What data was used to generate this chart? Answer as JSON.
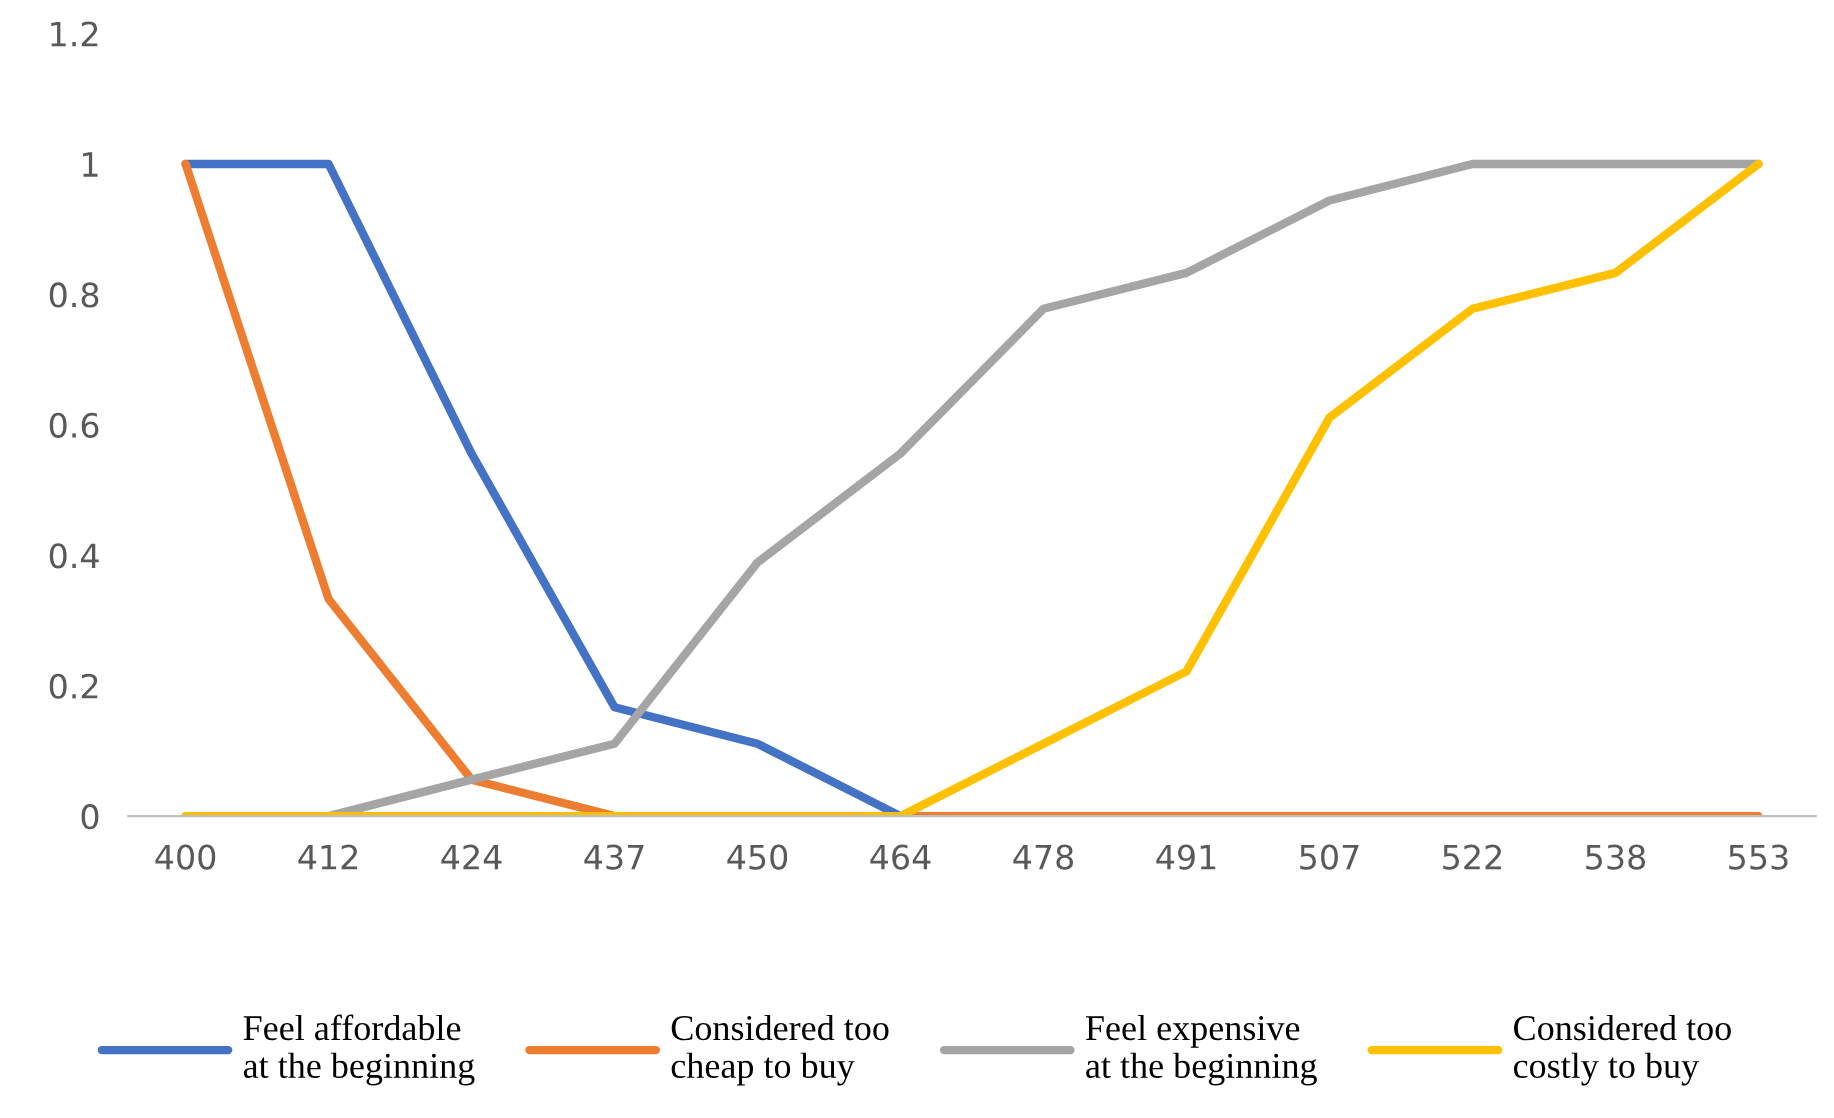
{
  "chart_data": {
    "type": "line",
    "categories": [
      "400",
      "412",
      "424",
      "437",
      "450",
      "464",
      "478",
      "491",
      "507",
      "522",
      "538",
      "553"
    ],
    "series": [
      {
        "name": "Feel affordable\nat the beginning",
        "color": "#4472c4",
        "values": [
          1,
          1,
          0.556,
          0.167,
          0.111,
          0,
          null,
          null,
          null,
          null,
          null,
          null
        ]
      },
      {
        "name": "Considered too\ncheap to buy",
        "color": "#ed7d31",
        "values": [
          1,
          0.333,
          0.056,
          0,
          0,
          0,
          0,
          0,
          0,
          0,
          0,
          0
        ]
      },
      {
        "name": "Feel expensive\nat the beginning",
        "color": "#a5a5a5",
        "values": [
          0,
          0,
          0.056,
          0.111,
          0.389,
          0.556,
          0.778,
          0.833,
          0.944,
          1,
          1,
          1
        ]
      },
      {
        "name": "Considered too\ncostly to buy",
        "color": "#ffc000",
        "values": [
          0,
          0,
          0,
          0,
          0,
          0,
          0.111,
          0.222,
          0.611,
          0.778,
          0.833,
          1
        ]
      }
    ],
    "ylim": [
      0,
      1.2
    ],
    "yticks": [
      0,
      0.2,
      0.4,
      0.6,
      0.8,
      1,
      1.2
    ],
    "grid": false,
    "legend": "bottom",
    "marker": "none",
    "line_style": "solid"
  }
}
